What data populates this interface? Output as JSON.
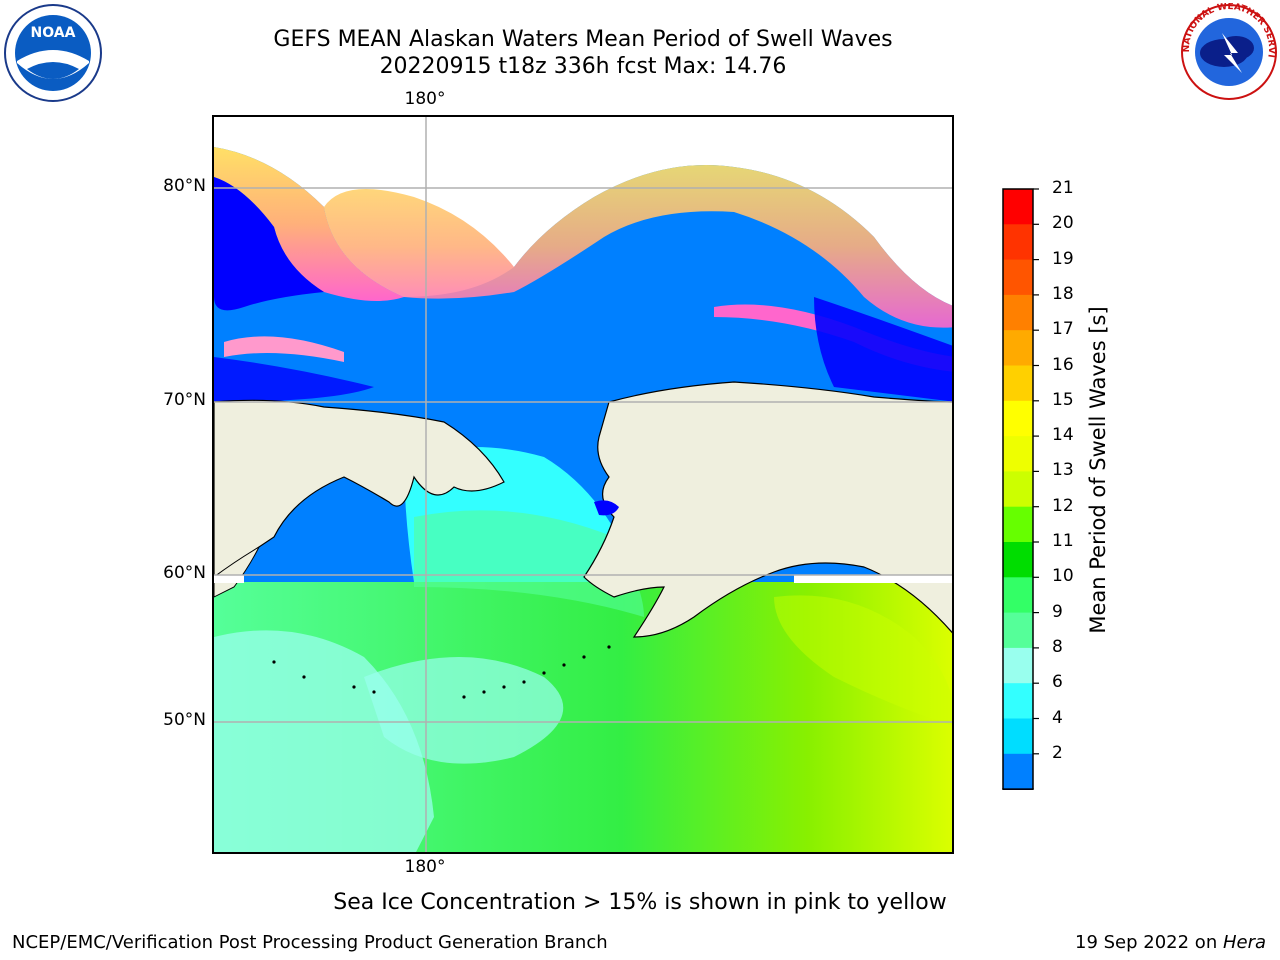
{
  "header": {
    "title_line1": "GEFS MEAN Alaskan Waters Mean Period of Swell Waves",
    "title_line2": "20220915 t18z 336h fcst   Max: 14.76"
  },
  "logos": {
    "left": {
      "icon": "noaa-logo-icon",
      "text": "NOAA"
    },
    "right": {
      "icon": "nws-logo-icon",
      "text": "NATIONAL WEATHER SERVICE"
    }
  },
  "map": {
    "lon_label_top": "180°",
    "lon_label_bottom": "180°",
    "lat_labels": [
      "80°N",
      "70°N",
      "60°N",
      "50°N"
    ],
    "colors": {
      "land": "#efefde",
      "ocean_shallow_period": "#0080ff",
      "ice_pink": "#ff66cc",
      "ice_yellow": "#ffe066",
      "no_data": "#ffffff",
      "grid": "#b0b0b0"
    }
  },
  "colorbar": {
    "label": "Mean Period of Swell Waves [s]",
    "ticks": [
      "21",
      "20",
      "19",
      "18",
      "17",
      "16",
      "15",
      "14",
      "13",
      "12",
      "11",
      "10",
      "9",
      "8",
      "6",
      "4",
      "2"
    ],
    "colors": [
      "#ff0000",
      "#ff3300",
      "#ff5500",
      "#ff8000",
      "#ffaa00",
      "#ffd000",
      "#ffff00",
      "#eeff00",
      "#ccff00",
      "#66ff00",
      "#00dd00",
      "#33ff66",
      "#55ff99",
      "#99ffee",
      "#33ffff",
      "#00ddff",
      "#0080ff"
    ],
    "extend_color": "#0000ff"
  },
  "ice_note": "Sea Ice Concentration > 15% is shown in pink to yellow",
  "footer": {
    "left": "NCEP/EMC/Verification Post Processing Product Generation Branch",
    "right_date": "19 Sep 2022 on ",
    "right_host": "Hera"
  }
}
